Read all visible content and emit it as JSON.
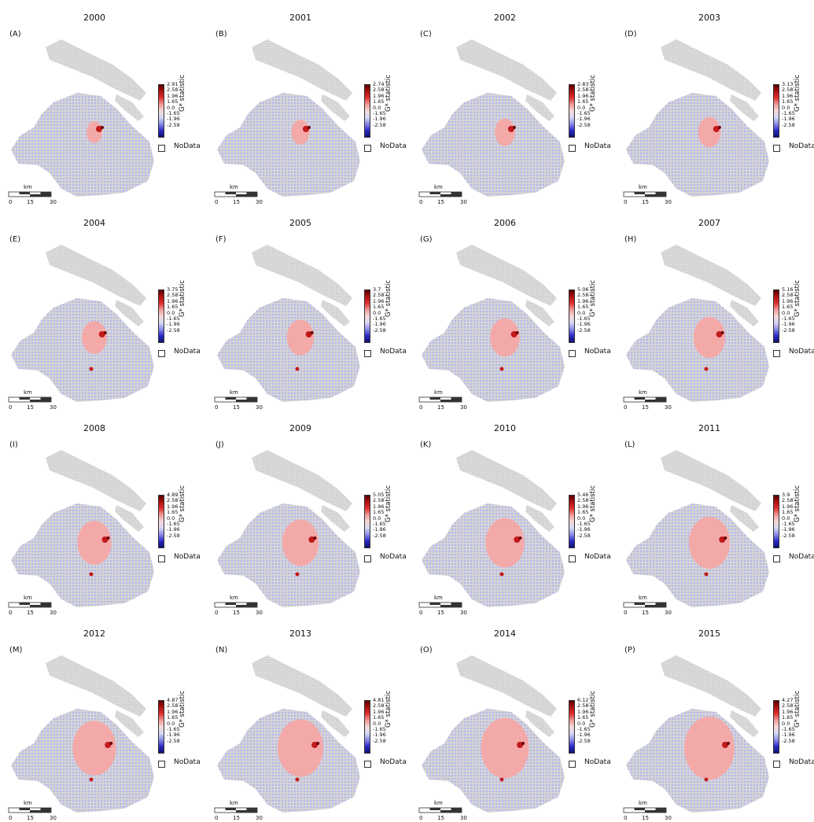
{
  "figure": {
    "colorbar_label": "G* statistic",
    "nodata_label": "NoData",
    "colorbar_colors": [
      "#5a0000",
      "#b01111",
      "#e03030",
      "#f09a9a",
      "#f5d8d8",
      "#d8d8f5",
      "#8c8ce8",
      "#2a2ac8",
      "#101070"
    ],
    "scale_unit": "km",
    "scale_ticks": [
      "0",
      "15",
      "30"
    ],
    "fill_colors": {
      "nodata": "#d4d4d4",
      "cold": "#b3b3f2",
      "warm": "#f4a9a9",
      "hot": "#c21a1a",
      "hotter": "#6b0000"
    },
    "panels": [
      {
        "year": "2000",
        "tag": "(A)",
        "max": "2.91",
        "ticks": [
          "2.58",
          "1.96",
          "1.65",
          "0.0",
          "-1.65",
          "-1.96",
          "-2.58"
        ]
      },
      {
        "year": "2001",
        "tag": "(B)",
        "max": "2.74",
        "ticks": [
          "2.58",
          "1.96",
          "1.65",
          "0.0",
          "-1.65",
          "-1.96",
          "-2.58"
        ]
      },
      {
        "year": "2002",
        "tag": "(C)",
        "max": "2.83",
        "ticks": [
          "2.58",
          "1.96",
          "1.65",
          "0.0",
          "-1.65",
          "-1.96",
          "-2.58"
        ]
      },
      {
        "year": "2003",
        "tag": "(D)",
        "max": "3.13",
        "ticks": [
          "2.58",
          "1.96",
          "1.65",
          "0.0",
          "-1.65",
          "-1.96",
          "-2.58"
        ]
      },
      {
        "year": "2004",
        "tag": "(E)",
        "max": "3.75",
        "ticks": [
          "2.58",
          "1.96",
          "1.65",
          "0.0",
          "-1.65",
          "-1.96",
          "-2.58"
        ]
      },
      {
        "year": "2005",
        "tag": "(F)",
        "max": "3.7",
        "ticks": [
          "2.58",
          "1.96",
          "1.65",
          "0.0",
          "-1.65",
          "-1.96",
          "-2.58"
        ]
      },
      {
        "year": "2006",
        "tag": "(G)",
        "max": "5.06",
        "ticks": [
          "2.58",
          "1.96",
          "1.65",
          "0.0",
          "-1.65",
          "-1.96",
          "-2.58"
        ]
      },
      {
        "year": "2007",
        "tag": "(H)",
        "max": "5.16",
        "ticks": [
          "2.58",
          "1.96",
          "1.65",
          "0.0",
          "-1.65",
          "-1.96",
          "-2.58"
        ]
      },
      {
        "year": "2008",
        "tag": "(I)",
        "max": "4.89",
        "ticks": [
          "2.58",
          "1.96",
          "1.65",
          "0.0",
          "-1.65",
          "-1.96",
          "-2.58"
        ]
      },
      {
        "year": "2009",
        "tag": "(J)",
        "max": "5.05",
        "ticks": [
          "2.58",
          "1.96",
          "1.65",
          "0.0",
          "-1.65",
          "-1.96",
          "-2.58"
        ]
      },
      {
        "year": "2010",
        "tag": "(K)",
        "max": "5.46",
        "ticks": [
          "2.58",
          "1.96",
          "1.65",
          "0.0",
          "-1.65",
          "-1.96",
          "-2.58"
        ]
      },
      {
        "year": "2011",
        "tag": "(L)",
        "max": "3.9",
        "ticks": [
          "2.58",
          "1.96",
          "1.65",
          "0.0",
          "-1.65",
          "-1.96",
          "-2.58"
        ]
      },
      {
        "year": "2012",
        "tag": "(M)",
        "max": "4.87",
        "ticks": [
          "2.58",
          "1.96",
          "1.65",
          "0.0",
          "-1.65",
          "-1.96",
          "-2.58"
        ]
      },
      {
        "year": "2013",
        "tag": "(N)",
        "max": "4.81",
        "ticks": [
          "2.58",
          "1.96",
          "1.65",
          "0.0",
          "-1.65",
          "-1.96",
          "-2.58"
        ]
      },
      {
        "year": "2014",
        "tag": "(O)",
        "max": "6.12",
        "ticks": [
          "2.58",
          "1.96",
          "1.65",
          "0.0",
          "-1.65",
          "-1.96",
          "-2.58"
        ]
      },
      {
        "year": "2015",
        "tag": "(P)",
        "max": "4.27",
        "ticks": [
          "2.58",
          "1.96",
          "1.65",
          "0.0",
          "-1.65",
          "-1.96",
          "-2.58"
        ]
      }
    ]
  }
}
